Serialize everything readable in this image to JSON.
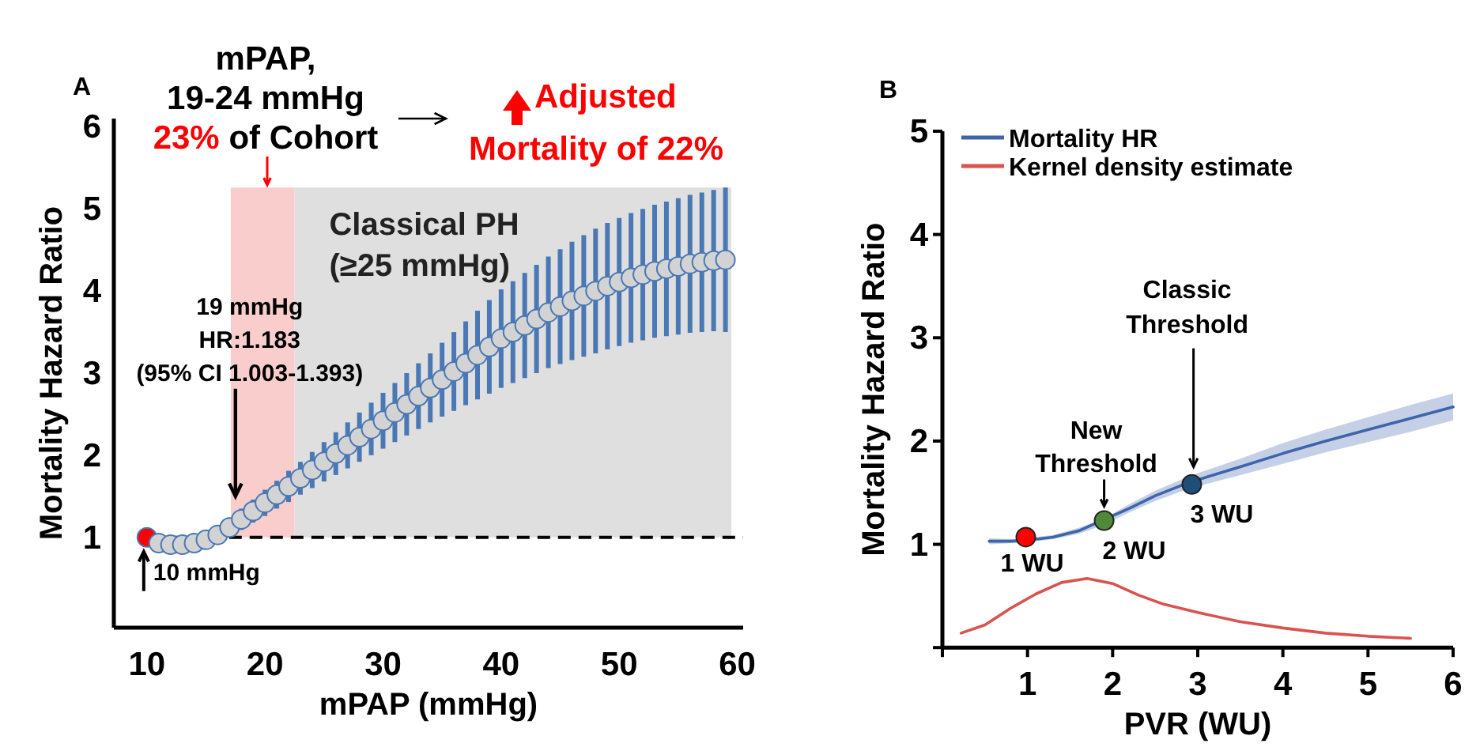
{
  "chart_data": [
    {
      "type": "scatter",
      "xlabel": "mPAP (mmHg)",
      "ylabel": "Mortality Hazard Ratio",
      "xlim": [
        7.2,
        60.5
      ],
      "ylim": [
        -0.1,
        6.1
      ],
      "xticks": [
        10,
        20,
        30,
        40,
        50,
        60
      ],
      "yticks": [
        1,
        2,
        3,
        4,
        5,
        6
      ],
      "marker": "circle",
      "grid": false,
      "legend": false,
      "annotations": [
        "A",
        "mPAP,",
        "19-24 mmHg",
        "23%",
        "of Cohort",
        "Adjusted",
        "Mortality of 22%",
        {
          "text": "19 mmHg\nHR:1.183\n(95% CI 1.003-1.393)",
          "x": 17.5,
          "y": 1.5
        },
        {
          "text": "10 mmHg",
          "x": 10,
          "y": 1
        }
      ],
      "ref_lines": [
        {
          "axis": "y",
          "value": 1,
          "line_style": "dashed",
          "color": "#000000"
        }
      ],
      "bands": [
        {
          "axis": "x",
          "from": 17.1,
          "to": 22.5,
          "color": "#f9c4c4"
        },
        {
          "axis": "x",
          "from": 22.5,
          "to": 59.5,
          "color": "#d9d9d9",
          "label": "Classical PH\n(≥25 mmHg)"
        }
      ],
      "series": [
        {
          "color": "#4a78b5",
          "x": [
            10,
            11,
            12,
            13,
            14,
            15,
            16,
            17,
            18,
            19,
            20,
            21,
            22,
            23,
            24,
            25,
            26,
            27,
            28,
            29,
            30,
            31,
            32,
            33,
            34,
            35,
            36,
            37,
            38,
            39,
            40,
            41,
            42,
            43,
            44,
            45,
            46,
            47,
            48,
            49,
            50,
            51,
            52,
            53,
            54,
            55,
            56,
            57,
            58,
            59
          ],
          "colors": [
            "#ff0000",
            "#d3d3d3",
            "#d3d3d3",
            "#d3d3d3",
            "#d3d3d3",
            "#d3d3d3",
            "#d3d3d3",
            "#d3d3d3",
            "#d3d3d3",
            "#d3d3d3",
            "#d3d3d3",
            "#d3d3d3",
            "#d3d3d3",
            "#d3d3d3",
            "#d3d3d3",
            "#d3d3d3",
            "#d3d3d3",
            "#d3d3d3",
            "#d3d3d3",
            "#d3d3d3",
            "#d3d3d3",
            "#d3d3d3",
            "#d3d3d3",
            "#d3d3d3",
            "#d3d3d3",
            "#d3d3d3",
            "#d3d3d3",
            "#d3d3d3",
            "#d3d3d3",
            "#d3d3d3",
            "#d3d3d3",
            "#d3d3d3",
            "#d3d3d3",
            "#d3d3d3",
            "#d3d3d3",
            "#d3d3d3",
            "#d3d3d3",
            "#d3d3d3",
            "#d3d3d3",
            "#d3d3d3",
            "#d3d3d3",
            "#d3d3d3",
            "#d3d3d3",
            "#d3d3d3",
            "#d3d3d3",
            "#d3d3d3",
            "#d3d3d3",
            "#d3d3d3",
            "#d3d3d3",
            "#d3d3d3"
          ],
          "values": [
            1.0,
            0.93,
            0.91,
            0.91,
            0.93,
            0.97,
            1.03,
            1.12,
            1.22,
            1.32,
            1.42,
            1.52,
            1.62,
            1.72,
            1.82,
            1.92,
            2.02,
            2.12,
            2.22,
            2.32,
            2.42,
            2.52,
            2.62,
            2.72,
            2.82,
            2.92,
            3.02,
            3.12,
            3.22,
            3.32,
            3.42,
            3.5,
            3.58,
            3.66,
            3.74,
            3.81,
            3.88,
            3.94,
            4.0,
            4.06,
            4.11,
            4.16,
            4.2,
            4.24,
            4.27,
            4.3,
            4.33,
            4.35,
            4.37,
            4.38
          ],
          "errors": [
            null,
            0.05,
            0.07,
            0.08,
            0.09,
            0.1,
            0.11,
            0.12,
            0.13,
            0.14,
            0.16,
            0.17,
            0.19,
            0.2,
            0.22,
            0.24,
            0.26,
            0.28,
            0.3,
            0.32,
            0.34,
            0.36,
            0.38,
            0.4,
            0.42,
            0.45,
            0.48,
            0.51,
            0.54,
            0.57,
            0.6,
            0.62,
            0.64,
            0.66,
            0.68,
            0.7,
            0.72,
            0.74,
            0.76,
            0.77,
            0.78,
            0.79,
            0.8,
            0.81,
            0.82,
            0.83,
            0.84,
            0.85,
            0.86,
            0.88
          ]
        }
      ]
    },
    {
      "type": "line",
      "xlabel": "PVR (WU)",
      "ylabel": "Mortality Hazard Ratio",
      "xlim": [
        0,
        6
      ],
      "ylim": [
        0,
        5
      ],
      "xticks": [
        {
          "value": 0,
          "label": null
        },
        1,
        2,
        3,
        4,
        5,
        6
      ],
      "yticks": [
        {
          "value": 0,
          "label": null
        },
        1,
        2,
        3,
        4,
        5
      ],
      "grid": false,
      "legend": "top left",
      "line_style": "solid",
      "annotations": [
        "B",
        {
          "text": "1 WU",
          "x": 0.98,
          "y": 1.07
        },
        {
          "text": "2 WU",
          "x": 1.9,
          "y": 1.23
        },
        {
          "text": "3 WU",
          "x": 2.93,
          "y": 1.58
        },
        {
          "text": "New\nThreshold",
          "x": 1.9,
          "y": 1.23
        },
        {
          "text": "Classic\nThreshold",
          "x": 2.95,
          "y": 1.75
        }
      ],
      "series": [
        {
          "name": "Mortality HR",
          "color": "#3e65ab",
          "x": [
            0.55,
            0.8,
            1.0,
            1.3,
            1.6,
            1.9,
            2.2,
            2.5,
            2.9,
            3.5,
            4.0,
            4.5,
            5.0,
            5.5,
            6.0
          ],
          "values": [
            1.03,
            1.03,
            1.04,
            1.07,
            1.13,
            null,
            1.35,
            1.47,
            1.6,
            1.75,
            1.88,
            2.0,
            2.11,
            2.22,
            2.33
          ],
          "lower": [
            1.0,
            1.01,
            1.02,
            1.05,
            1.1,
            1.19,
            1.31,
            1.42,
            1.54,
            1.67,
            1.78,
            1.89,
            1.99,
            2.09,
            2.2
          ],
          "upper": [
            1.06,
            1.05,
            1.06,
            1.09,
            1.16,
            1.25,
            1.39,
            1.52,
            1.66,
            1.83,
            1.98,
            2.11,
            2.23,
            2.35,
            2.46
          ]
        },
        {
          "name": "Kernel density estimate",
          "color": "#d9534f",
          "x": [
            0.22,
            0.5,
            0.8,
            1.1,
            1.4,
            1.7,
            2.0,
            2.3,
            2.6,
            3.0,
            3.5,
            4.0,
            4.5,
            5.0,
            5.5
          ],
          "values": [
            0.14,
            0.22,
            0.38,
            0.52,
            0.63,
            0.67,
            0.62,
            0.51,
            0.42,
            0.34,
            0.25,
            0.19,
            0.14,
            0.11,
            0.09
          ]
        },
        {
          "type": "scatter",
          "x": [
            0.98,
            1.9,
            2.93
          ],
          "values": [
            1.07,
            1.23,
            1.58
          ],
          "colors": [
            "#ff0000",
            "#4f8a3a",
            "#1f4e79"
          ]
        }
      ]
    }
  ]
}
